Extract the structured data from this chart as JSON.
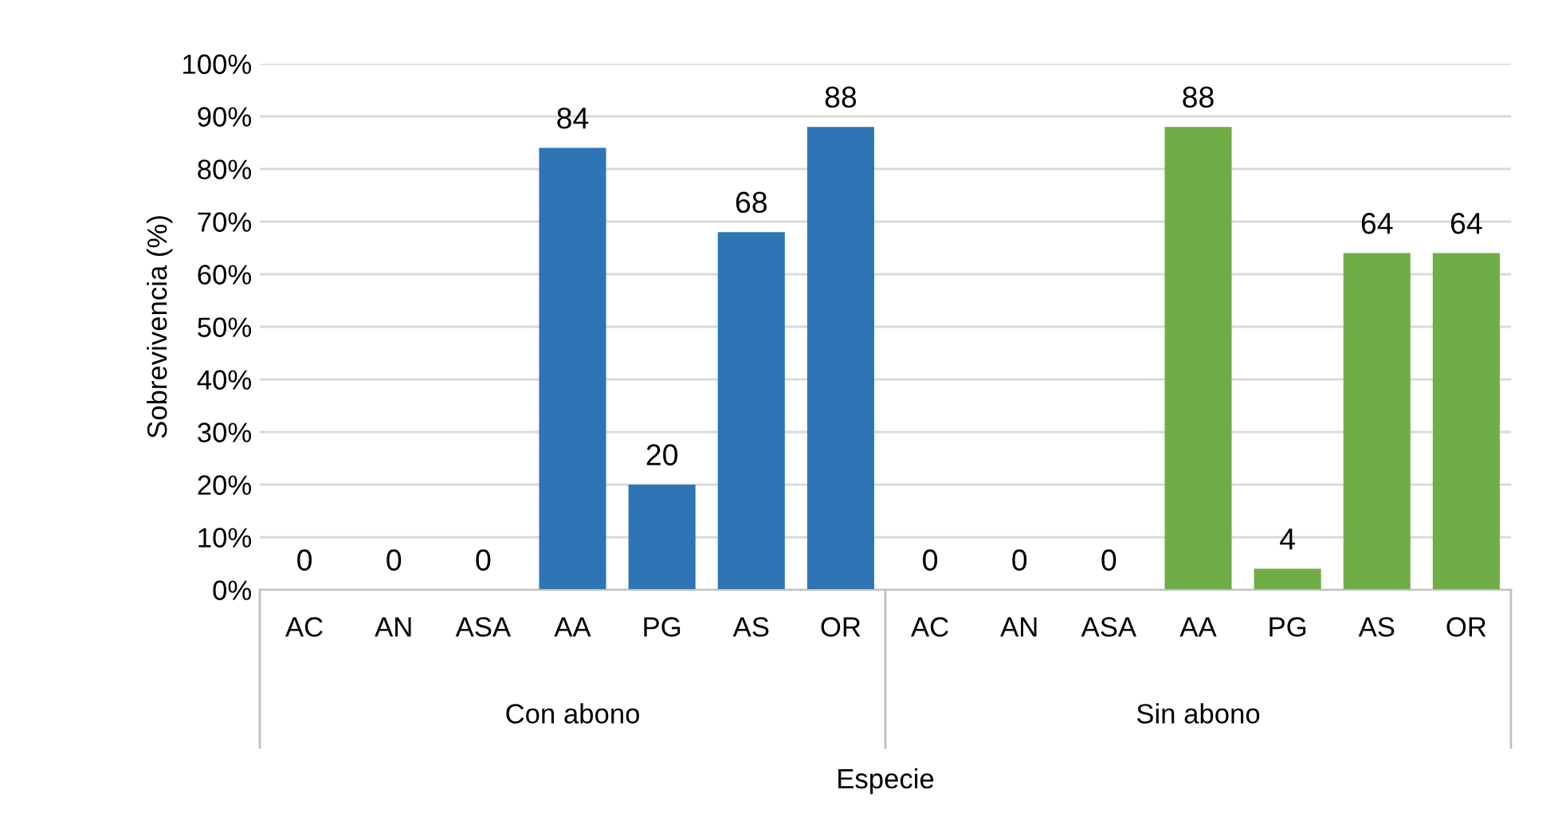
{
  "chart_data": {
    "type": "bar",
    "xlabel": "Especie",
    "ylabel": "Sobrevivencia (%)",
    "categories": [
      "AC",
      "AN",
      "ASA",
      "AA",
      "PG",
      "AS",
      "OR",
      "AC",
      "AN",
      "ASA",
      "AA",
      "PG",
      "AS",
      "OR"
    ],
    "values": [
      0,
      0,
      0,
      84,
      20,
      68,
      88,
      0,
      0,
      0,
      88,
      4,
      64,
      64
    ],
    "colors": [
      "#2e75b6",
      "#2e75b6",
      "#2e75b6",
      "#2e75b6",
      "#2e75b6",
      "#2e75b6",
      "#2e75b6",
      "#70ad47",
      "#70ad47",
      "#70ad47",
      "#70ad47",
      "#70ad47",
      "#70ad47",
      "#70ad47"
    ],
    "annotations": [
      "Con abono",
      "Sin abono"
    ],
    "ylim": [
      0,
      100
    ],
    "yticks": [
      {
        "value": 0,
        "label": "0%"
      },
      {
        "value": 10,
        "label": "10%"
      },
      {
        "value": 20,
        "label": "20%"
      },
      {
        "value": 30,
        "label": "30%"
      },
      {
        "value": 40,
        "label": "40%"
      },
      {
        "value": 50,
        "label": "50%"
      },
      {
        "value": 60,
        "label": "60%"
      },
      {
        "value": 70,
        "label": "70%"
      },
      {
        "value": 80,
        "label": "80%"
      },
      {
        "value": 90,
        "label": "90%"
      },
      {
        "value": 100,
        "label": "100%"
      }
    ],
    "grid": "y",
    "data_labels": true,
    "legend": false
  }
}
